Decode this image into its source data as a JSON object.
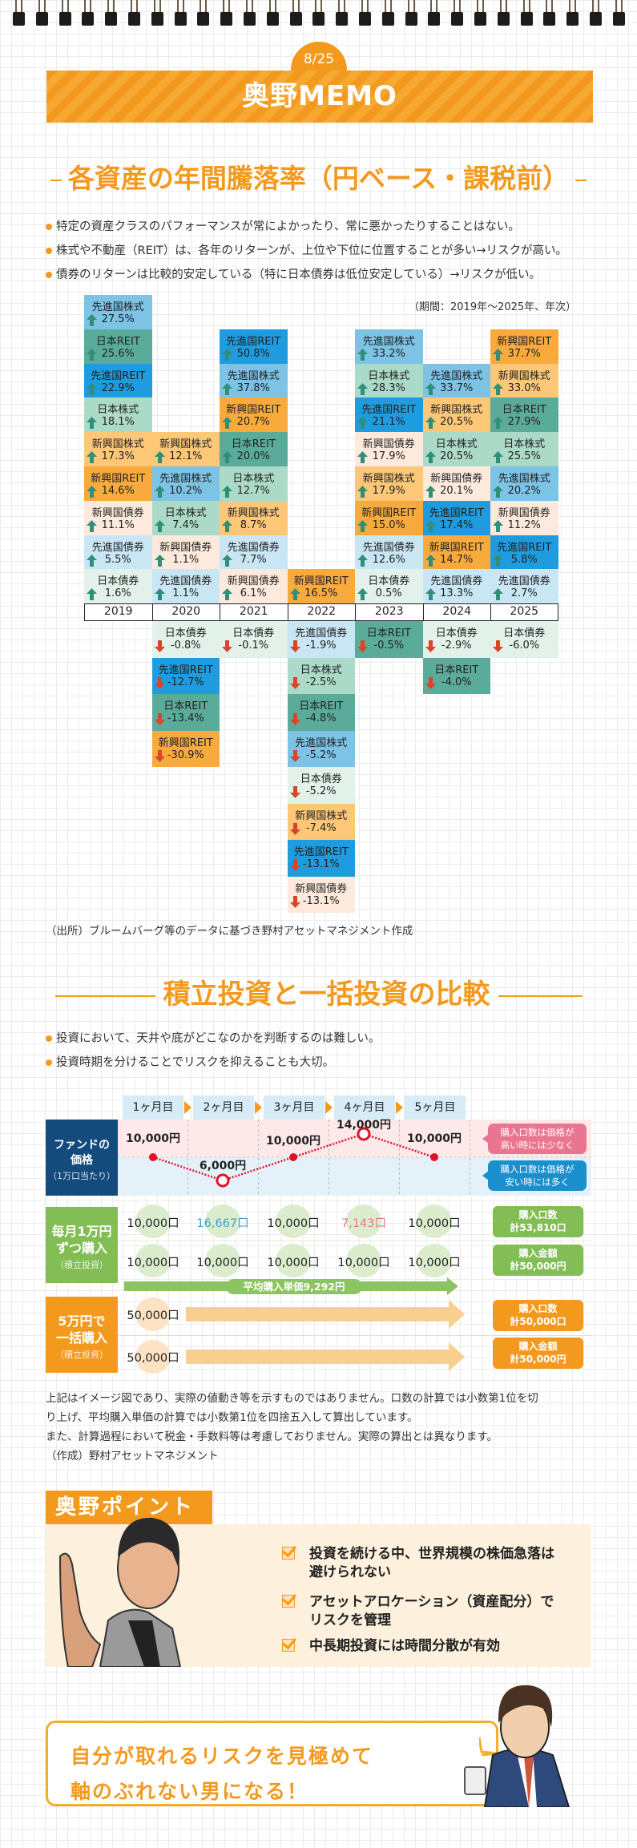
{
  "header": {
    "date": "8/25",
    "title": "奥野MEMO"
  },
  "section1": {
    "title": "各資産の年間騰落率（円ベース・課税前）",
    "bullets": [
      "特定の資産クラスのパフォーマンスが常によかったり、常に悪かったりすることはない。",
      "株式や不動産（REIT）は、各年のリターンが、上位や下位に位置することが多い→リスクが高い。",
      "債券のリターンは比較的安定している（特に日本債券は低位安定している）→リスクが低い。"
    ],
    "period": "（期間：2019年～2025年、年次）",
    "source": "（出所）ブルームバーグ等のデータに基づき野村アセットマネジメント作成"
  },
  "colors": {
    "先進国株式": "#7cc3e6",
    "日本REIT": "#5bab9a",
    "先進国REIT": "#1f9ce0",
    "日本株式": "#acdac9",
    "新興国株式": "#fcc878",
    "新興国REIT": "#f8aa3c",
    "新興国債券": "#fdeadc",
    "先進国債券": "#c9e6f4",
    "日本債券": "#e2f1e9",
    "up_arrow": "#2f8f78",
    "down_arrow": "#d8452a",
    "accent": "#f39a1e"
  },
  "chart_data": {
    "type": "table",
    "title": "各資産の年間騰落率（円ベース・課税前）",
    "unit": "%",
    "years": [
      "2019",
      "2020",
      "2021",
      "2022",
      "2023",
      "2024",
      "2025"
    ],
    "columns": [
      {
        "year": "2019",
        "positive": [
          [
            "先進国株式",
            27.5
          ],
          [
            "日本REIT",
            25.6
          ],
          [
            "先進国REIT",
            22.9
          ],
          [
            "日本株式",
            18.1
          ],
          [
            "新興国株式",
            17.3
          ],
          [
            "新興国REIT",
            14.6
          ],
          [
            "新興国債券",
            11.1
          ],
          [
            "先進国債券",
            5.5
          ],
          [
            "日本債券",
            1.6
          ]
        ],
        "negative": []
      },
      {
        "year": "2020",
        "positive": [
          [
            "新興国株式",
            12.1
          ],
          [
            "先進国株式",
            10.2
          ],
          [
            "日本株式",
            7.4
          ],
          [
            "新興国債券",
            1.1
          ],
          [
            "先進国債券",
            1.1
          ]
        ],
        "negative": [
          [
            "日本債券",
            -0.8
          ],
          [
            "先進国REIT",
            -12.7
          ],
          [
            "日本REIT",
            -13.4
          ],
          [
            "新興国REIT",
            -30.9
          ]
        ]
      },
      {
        "year": "2021",
        "positive": [
          [
            "先進国REIT",
            50.8
          ],
          [
            "先進国株式",
            37.8
          ],
          [
            "新興国REIT",
            20.7
          ],
          [
            "日本REIT",
            20.0
          ],
          [
            "日本株式",
            12.7
          ],
          [
            "新興国株式",
            8.7
          ],
          [
            "先進国債券",
            7.7
          ],
          [
            "新興国債券",
            6.1
          ]
        ],
        "negative": [
          [
            "日本債券",
            -0.1
          ]
        ]
      },
      {
        "year": "2022",
        "positive": [
          [
            "新興国REIT",
            16.5
          ]
        ],
        "negative": [
          [
            "先進国債券",
            -1.9
          ],
          [
            "日本株式",
            -2.5
          ],
          [
            "日本REIT",
            -4.8
          ],
          [
            "先進国株式",
            -5.2
          ],
          [
            "日本債券",
            -5.2
          ],
          [
            "新興国株式",
            -7.4
          ],
          [
            "先進国REIT",
            -13.1
          ],
          [
            "新興国債券",
            -13.1
          ]
        ]
      },
      {
        "year": "2023",
        "positive": [
          [
            "先進国株式",
            33.2
          ],
          [
            "日本株式",
            28.3
          ],
          [
            "先進国REIT",
            21.1
          ],
          [
            "新興国債券",
            17.9
          ],
          [
            "新興国株式",
            17.9
          ],
          [
            "新興国REIT",
            15.0
          ],
          [
            "先進国債券",
            12.6
          ],
          [
            "日本債券",
            0.5
          ]
        ],
        "negative": [
          [
            "日本REIT",
            -0.5
          ]
        ]
      },
      {
        "year": "2024",
        "positive": [
          [
            "先進国株式",
            33.7
          ],
          [
            "新興国株式",
            20.5
          ],
          [
            "日本株式",
            20.5
          ],
          [
            "新興国債券",
            20.1
          ],
          [
            "先進国REIT",
            17.4
          ],
          [
            "新興国REIT",
            14.7
          ],
          [
            "先進国債券",
            13.3
          ]
        ],
        "negative": [
          [
            "日本債券",
            -2.9
          ],
          [
            "日本REIT",
            -4.0
          ]
        ]
      },
      {
        "year": "2025",
        "positive": [
          [
            "新興国REIT",
            37.7
          ],
          [
            "新興国株式",
            33.0
          ],
          [
            "日本REIT",
            27.9
          ],
          [
            "日本株式",
            25.5
          ],
          [
            "先進国株式",
            20.2
          ],
          [
            "新興国債券",
            11.2
          ],
          [
            "先進国REIT",
            5.8
          ],
          [
            "先進国債券",
            2.7
          ]
        ],
        "negative": [
          [
            "日本債券",
            -6.0
          ]
        ]
      }
    ]
  },
  "section2": {
    "title": "積立投資と一括投資の比較",
    "bullets": [
      "投資において、天井や底がどこなのかを判断するのは難しい。",
      "投資時期を分けることでリスクを抑えることも大切。"
    ],
    "months": [
      "1ヶ月目",
      "2ヶ月目",
      "3ヶ月目",
      "4ヶ月目",
      "5ヶ月目"
    ],
    "price_box": {
      "line1": "ファンドの",
      "line2": "価格",
      "sub": "（1万口当たり）"
    },
    "prices": [
      10000,
      6000,
      10000,
      14000,
      10000
    ],
    "price_labels": [
      "10,000円",
      "6,000円",
      "10,000円",
      "14,000円",
      "10,000円"
    ],
    "callout_high": [
      "購入口数は価格が",
      "高い時には少なく"
    ],
    "callout_low": [
      "購入口数は価格が",
      "安い時には多く"
    ],
    "dca": {
      "line1": "毎月1万円",
      "line2": "ずつ購入",
      "sub": "（積立投資）",
      "units": [
        "10,000口",
        "16,667口",
        "10,000口",
        "7,143口",
        "10,000口"
      ],
      "amounts": [
        "10,000口",
        "10,000口",
        "10,000口",
        "10,000口",
        "10,000口"
      ],
      "result_units": [
        "購入口数",
        "計53,810口"
      ],
      "result_amount": [
        "購入金額",
        "計50,000円"
      ],
      "average": "平均購入単価9,292円",
      "high_color": "#3aa0d8",
      "low_color": "#e8758a"
    },
    "lump": {
      "line1": "5万円で",
      "line2": "一括購入",
      "sub": "（積立投資）",
      "units": "50,000口",
      "amount": "50,000口",
      "result_units": [
        "購入口数",
        "計50,000口"
      ],
      "result_amount": [
        "購入金額",
        "計50,000円"
      ]
    },
    "notes": [
      "上記はイメージ図であり、実際の値動き等を示すものではありません。口数の計算では小数第1位を切",
      "り上げ、平均購入単価の計算では小数第1位を四捨五入して算出しています。",
      "また、計算過程において税金・手数料等は考慮しておりません。実際の算出とは異なります。",
      "（作成）野村アセットマネジメント"
    ]
  },
  "point": {
    "title": "奥野ポイント",
    "items": [
      [
        "投資を続ける中、世界規模の株価急落は",
        "避けられない"
      ],
      [
        "アセットアロケーション（資産配分）で",
        "リスクを管理"
      ],
      [
        "中長期投資には時間分散が有効"
      ]
    ]
  },
  "bubble": {
    "lines": [
      "自分が取れるリスクを見極めて",
      "軸のぶれない男になる！"
    ]
  }
}
